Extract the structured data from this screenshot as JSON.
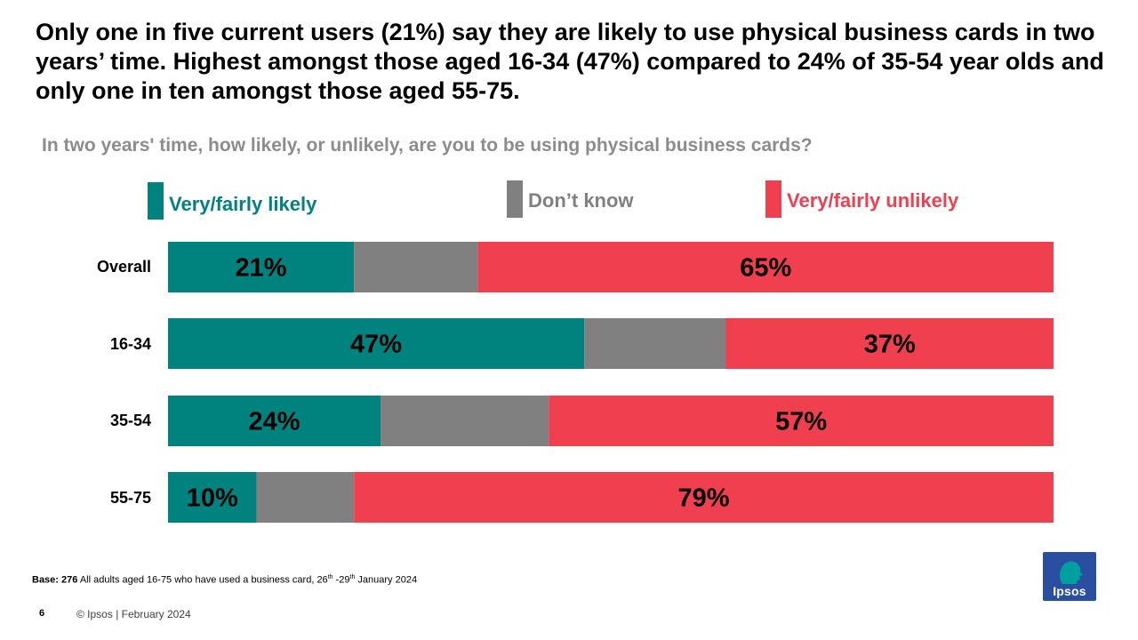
{
  "headline": "Only one in five current users (21%) say they are likely to use physical business cards in two years’ time.  Highest amongst those aged 16-34 (47%) compared to 24% of 35-54 year olds and only one in ten amongst those aged 55-75.",
  "question": "In two years' time, how likely, or unlikely, are you to be using physical business cards?",
  "colors": {
    "likely": "#00827f",
    "dont_know": "#808080",
    "unlikely": "#f04050"
  },
  "legend": [
    {
      "label": "Very/fairly likely",
      "color": "#00827f"
    },
    {
      "label": "Don’t know",
      "color": "#808080"
    },
    {
      "label": "Very/fairly unlikely",
      "color": "#f04050"
    }
  ],
  "chart_data": {
    "type": "bar",
    "orientation": "horizontal",
    "stacked": true,
    "categories": [
      "Overall",
      "16-34",
      "35-54",
      "55-75"
    ],
    "series": [
      {
        "name": "Very/fairly likely",
        "values": [
          21,
          47,
          24,
          10
        ],
        "labels": [
          "21%",
          "47%",
          "24%",
          "10%"
        ]
      },
      {
        "name": "Don’t know",
        "values": [
          14,
          16,
          19,
          11
        ],
        "labels": [
          "",
          "",
          "",
          ""
        ]
      },
      {
        "name": "Very/fairly unlikely",
        "values": [
          65,
          37,
          57,
          79
        ],
        "labels": [
          "65%",
          "37%",
          "57%",
          "79%"
        ]
      }
    ],
    "xlim": [
      0,
      100
    ],
    "grid": false,
    "legend_position": "top"
  },
  "footnote": {
    "base_label": "Base: 276",
    "text_a": " All adults aged 16-75 who have used a business card, 26",
    "sup_a": "th",
    "text_b": " -29",
    "sup_b": "th",
    "text_c": " January 2024"
  },
  "page_number": "6",
  "copyright": "© Ipsos | February 2024",
  "logo_text": "Ipsos"
}
